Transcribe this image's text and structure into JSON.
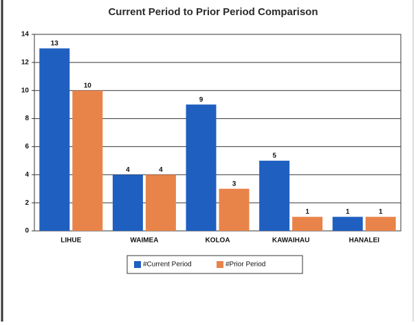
{
  "chart_data": {
    "type": "bar",
    "title": "Current Period to Prior Period Comparison",
    "categories": [
      "LIHUE",
      "WAIMEA",
      "KOLOA",
      "KAWAIHAU",
      "HANALEI"
    ],
    "series": [
      {
        "name": "#Current Period",
        "color": "#1f5fc0",
        "values": [
          13,
          4,
          9,
          5,
          1
        ]
      },
      {
        "name": "#Prior Period",
        "color": "#e8834a",
        "values": [
          10,
          4,
          3,
          1,
          1
        ]
      }
    ],
    "ylim": [
      0,
      14
    ],
    "yticks": [
      0,
      2,
      4,
      6,
      8,
      10,
      12,
      14
    ],
    "grid": true
  }
}
